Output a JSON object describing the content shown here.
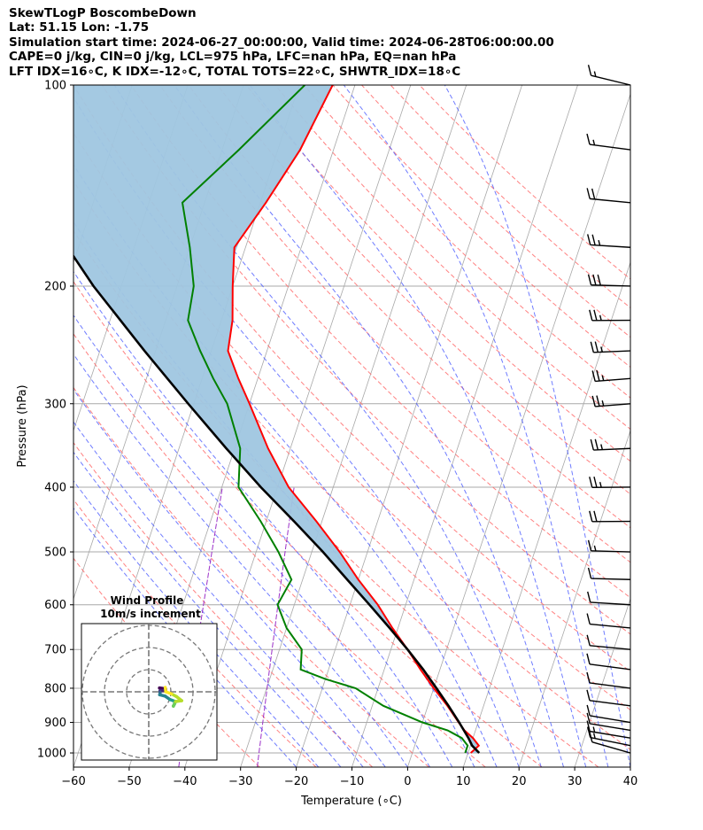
{
  "header": {
    "line1": "SkewTLogP BoscombeDown",
    "line2": "Lat: 51.15   Lon: -1.75",
    "line3": "Simulation start time: 2024-06-27_00:00:00, Valid time: 2024-06-28T06:00:00.00",
    "line4": "CAPE=0 j/kg, CIN=0 j/kg, LCL=975 hPa, LFC=nan hPa, EQ=nan hPa",
    "line5": "LFT IDX=16∘C, K IDX=-12∘C, TOTAL TOTS=22∘C, SHWTR_IDX=18∘C"
  },
  "chart_data": {
    "type": "skewt",
    "xlabel": "Temperature (∘C)",
    "ylabel": "Pressure (hPa)",
    "xlim": [
      -60,
      40
    ],
    "ylim": [
      1050,
      100
    ],
    "y_scale": "log",
    "x_ticks": [
      -60,
      -50,
      -40,
      -30,
      -20,
      -10,
      0,
      10,
      20,
      30,
      40
    ],
    "x_tick_labels": [
      "−60",
      "−50",
      "−40",
      "−30",
      "−20",
      "−10",
      "0",
      "10",
      "20",
      "30",
      "40"
    ],
    "y_ticks": [
      1000,
      900,
      800,
      700,
      600,
      500,
      400,
      300,
      200,
      100
    ],
    "grid": true,
    "temperature_profile": {
      "color": "#ff0000",
      "pressure": [
        1000,
        975,
        950,
        925,
        900,
        850,
        800,
        750,
        700,
        650,
        600,
        550,
        500,
        450,
        400,
        350,
        300,
        275,
        250,
        225,
        200,
        175,
        150,
        125,
        100
      ],
      "temperature": [
        10.5,
        11.5,
        10,
        8,
        6.5,
        3.5,
        0,
        -3.5,
        -7,
        -11,
        -15,
        -20,
        -25,
        -31,
        -38,
        -44,
        -50,
        -53.5,
        -57,
        -58,
        -60,
        -62,
        -59,
        -56,
        -54
      ]
    },
    "dewpoint_profile": {
      "color": "#008000",
      "pressure": [
        1000,
        975,
        950,
        925,
        900,
        850,
        800,
        775,
        750,
        700,
        650,
        600,
        550,
        500,
        450,
        400,
        350,
        300,
        275,
        250,
        225,
        200,
        175,
        150,
        125,
        100
      ],
      "dewpoint": [
        9.5,
        9.5,
        8,
        5,
        0,
        -8,
        -14,
        -20,
        -25,
        -26,
        -30,
        -33,
        -32,
        -36,
        -41,
        -47,
        -49,
        -54,
        -58,
        -62,
        -66,
        -67,
        -70,
        -74,
        -67,
        -59
      ]
    },
    "parcel_profile": {
      "color": "#000000",
      "pressure": [
        1000,
        975,
        950,
        900,
        850,
        800,
        750,
        700,
        650,
        600,
        550,
        500,
        450,
        400,
        350,
        300,
        250,
        200,
        150,
        125,
        100
      ],
      "temperature": [
        12,
        10.3,
        9.2,
        6.6,
        3.7,
        0.5,
        -3,
        -7,
        -11.5,
        -16.5,
        -22,
        -28,
        -35,
        -43,
        -51.5,
        -61,
        -72,
        -85,
        -100,
        -109,
        -119
      ]
    },
    "shaded_area_color": "#9fc6e0",
    "dry_adiabats_color": "#ff6b6b",
    "moist_adiabats_color": "#4b5bff",
    "mixing_ratio_color": "#9b30c8",
    "isotherm_color": "#a8a8a8",
    "wind_barbs": {
      "pressure": [
        1000,
        975,
        950,
        925,
        900,
        850,
        800,
        750,
        700,
        650,
        600,
        550,
        500,
        450,
        400,
        350,
        300,
        275,
        250,
        225,
        200,
        175,
        150,
        125,
        100
      ],
      "speed_kt": [
        10,
        15,
        15,
        10,
        10,
        10,
        10,
        10,
        10,
        10,
        10,
        10,
        15,
        20,
        25,
        25,
        25,
        25,
        25,
        25,
        30,
        25,
        20,
        15,
        15
      ],
      "direction_deg": [
        250,
        260,
        265,
        265,
        265,
        270,
        270,
        270,
        275,
        275,
        280,
        285,
        285,
        290,
        290,
        295,
        300,
        300,
        295,
        290,
        285,
        280,
        275,
        270,
        255
      ]
    },
    "hodograph": {
      "title": "Wind Profile",
      "subtitle": "10m/s increment",
      "rings_ms": [
        10,
        20,
        30
      ]
    }
  }
}
